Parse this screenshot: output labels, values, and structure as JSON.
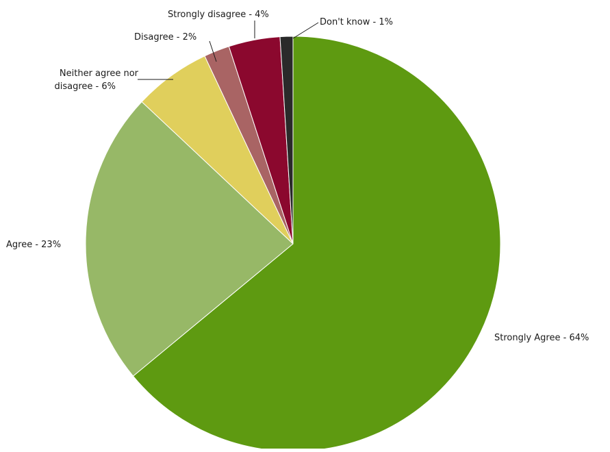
{
  "chart_data": {
    "type": "pie",
    "title": "",
    "start_angle_deg": 0,
    "direction": "clockwise",
    "slices": [
      {
        "label": "Strongly Agree - 64%",
        "category": "Strongly Agree",
        "value": 64,
        "color": "#5e9a11"
      },
      {
        "label": "Agree - 23%",
        "category": "Agree",
        "value": 23,
        "color": "#97b867"
      },
      {
        "label": "Neither agree nor disagree - 6%",
        "category": "Neither agree nor disagree",
        "value": 6,
        "color": "#e0cf5c"
      },
      {
        "label": "Disagree - 2%",
        "category": "Disagree",
        "value": 2,
        "color": "#a96464"
      },
      {
        "label": "Strongly disagree - 4%",
        "category": "Strongly disagree",
        "value": 4,
        "color": "#8b082e"
      },
      {
        "label": "Don't know - 1%",
        "category": "Don't know",
        "value": 1,
        "color": "#2a2a2a"
      }
    ],
    "legend": "none",
    "data_labels": "outside"
  }
}
